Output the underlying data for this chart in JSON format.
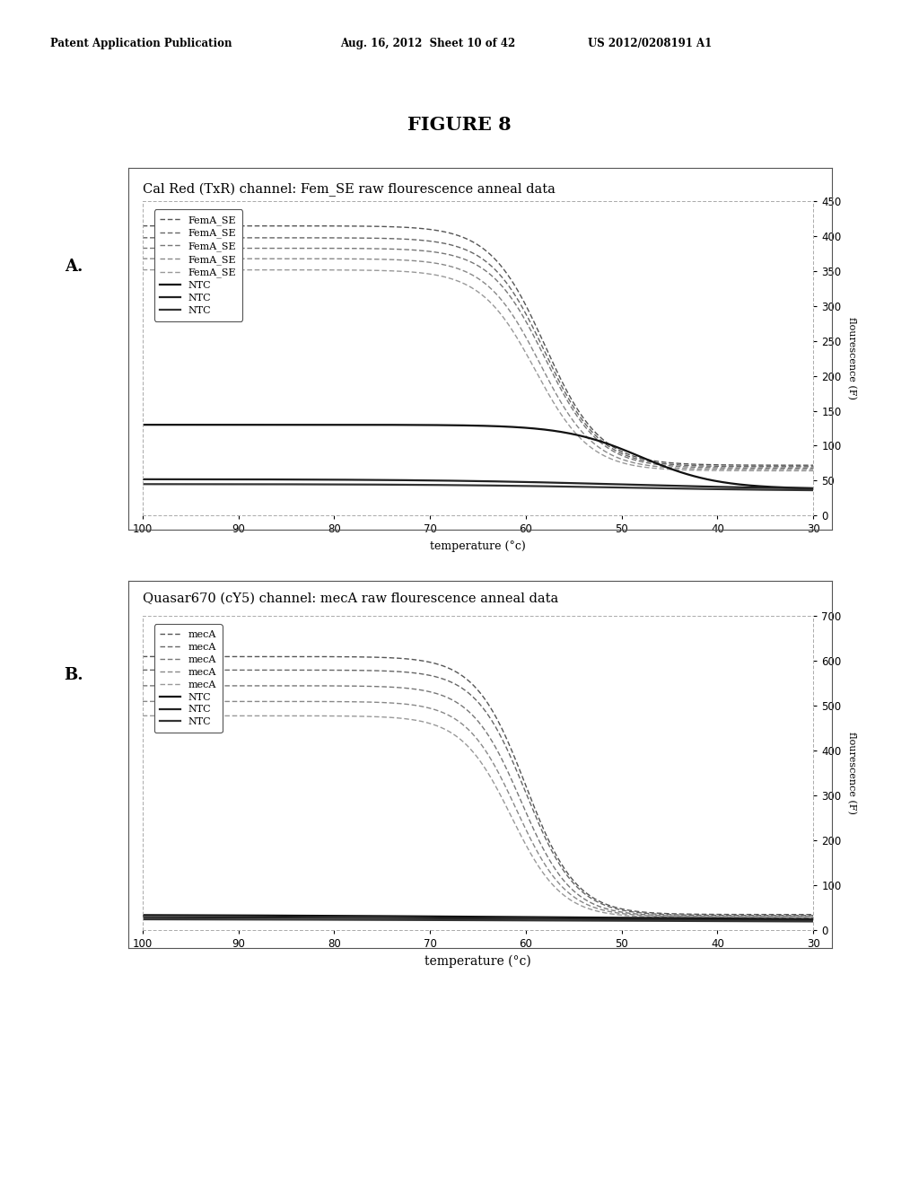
{
  "fig_title": "FIGURE 8",
  "header_left": "Patent Application Publication",
  "header_mid": "Aug. 16, 2012  Sheet 10 of 42",
  "header_right": "US 2012/0208191 A1",
  "panel_A_title": "Cal Red (TxR) channel: Fem_SE raw flourescence anneal data",
  "panel_B_title": "Quasar670 (cY5) channel: mecA raw flourescence anneal data",
  "panel_A_label": "A.",
  "panel_B_label": "B.",
  "xlabel": "temperature (°c)",
  "ylabel_A": "flourescence (F)",
  "ylabel_B": "flourescence (F)",
  "panel_A_ylim": [
    0,
    450
  ],
  "panel_A_yticks": [
    0,
    50,
    100,
    150,
    200,
    250,
    300,
    350,
    400,
    450
  ],
  "panel_B_ylim": [
    0,
    700
  ],
  "panel_B_yticks": [
    0,
    100,
    200,
    300,
    400,
    500,
    600,
    700
  ],
  "xticks": [
    100,
    90,
    80,
    70,
    60,
    50,
    40,
    30
  ],
  "background": "#ffffff",
  "legend_A": [
    "FemA_SE",
    "FemA_SE",
    "FemA_SE",
    "FemA_SE",
    "FemA_SE",
    "NTC",
    "NTC",
    "NTC"
  ],
  "legend_B": [
    "mecA",
    "mecA",
    "mecA",
    "mecA",
    "mecA",
    "NTC",
    "NTC",
    "NTC"
  ],
  "femA_colors": [
    "#555555",
    "#666666",
    "#777777",
    "#888888",
    "#999999"
  ],
  "ntc_A_colors": [
    "#111111",
    "#222222",
    "#333333"
  ],
  "mecA_colors": [
    "#555555",
    "#666666",
    "#777777",
    "#888888",
    "#999999"
  ],
  "ntc_B_colors": [
    "#111111",
    "#222222",
    "#333333"
  ]
}
